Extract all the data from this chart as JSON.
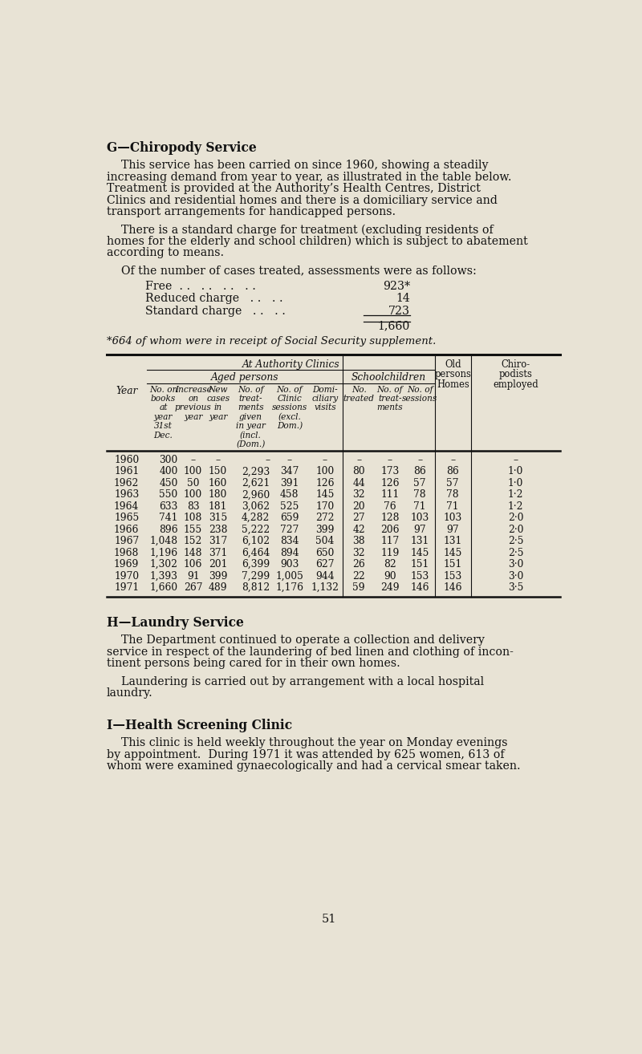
{
  "bg_color": "#e8e3d5",
  "text_color": "#111111",
  "title_g": "G—Chiropody Service",
  "lines1": [
    "    This service has been carried on since 1960, showing a steadily",
    "increasing demand from year to year, as illustrated in the table below.",
    "Treatment is provided at the Authority’s Health Centres, District",
    "Clinics and residential homes and there is a domiciliary service and",
    "transport arrangements for handicapped persons."
  ],
  "lines2": [
    "    There is a standard charge for treatment (excluding residents of",
    "homes for the elderly and school children) which is subject to abatement",
    "according to means."
  ],
  "lines3": "    Of the number of cases treated, assessments were as follows:",
  "charge_labels": [
    "Free  . .   . .   . .   . .",
    "Reduced charge   . .   . .",
    "Standard charge   . .   . ."
  ],
  "charge_values": [
    "923*",
    "14",
    "723"
  ],
  "total": "1,660",
  "footnote": "*664 of whom were in receipt of Social Security supplement.",
  "rows": [
    [
      "1960",
      "300",
      "–",
      "–",
      "–",
      "–",
      "–",
      "–",
      "–",
      "–",
      "–"
    ],
    [
      "1961",
      "400",
      "100",
      "150",
      "2,293",
      "347",
      "100",
      "80",
      "173",
      "86",
      "1·0"
    ],
    [
      "1962",
      "450",
      "50",
      "160",
      "2,621",
      "391",
      "126",
      "44",
      "126",
      "57",
      "1·0"
    ],
    [
      "1963",
      "550",
      "100",
      "180",
      "2,960",
      "458",
      "145",
      "32",
      "111",
      "78",
      "1·2"
    ],
    [
      "1964",
      "633",
      "83",
      "181",
      "3,062",
      "525",
      "170",
      "20",
      "76",
      "71",
      "1·2"
    ],
    [
      "1965",
      "741",
      "108",
      "315",
      "4,282",
      "659",
      "272",
      "27",
      "128",
      "103",
      "2·0"
    ],
    [
      "1966",
      "896",
      "155",
      "238",
      "5,222",
      "727",
      "399",
      "42",
      "206",
      "97",
      "2·0"
    ],
    [
      "1967",
      "1,048",
      "152",
      "317",
      "6,102",
      "834",
      "504",
      "38",
      "117",
      "131",
      "2·5"
    ],
    [
      "1968",
      "1,196",
      "148",
      "371",
      "6,464",
      "894",
      "650",
      "32",
      "119",
      "145",
      "2·5"
    ],
    [
      "1969",
      "1,302",
      "106",
      "201",
      "6,399",
      "903",
      "627",
      "26",
      "82",
      "151",
      "3·0"
    ],
    [
      "1970",
      "1,393",
      "91",
      "399",
      "7,299",
      "1,005",
      "944",
      "22",
      "90",
      "153",
      "3·0"
    ],
    [
      "1971",
      "1,660",
      "267",
      "489",
      "8,812",
      "1,176",
      "1,132",
      "59",
      "249",
      "146",
      "3·5"
    ]
  ],
  "title_h": "H—Laundry Service",
  "lines_h1": [
    "    The Department continued to operate a collection and delivery",
    "service in respect of the laundering of bed linen and clothing of incon-",
    "tinent persons being cared for in their own homes."
  ],
  "lines_h2": [
    "    Laundering is carried out by arrangement with a local hospital",
    "laundry."
  ],
  "title_i": "I—Health Screening Clinic",
  "lines_i": [
    "    This clinic is held weekly throughout the year on Monday evenings",
    "by appointment.  During 1971 it was attended by 625 women, 613 of",
    "whom were examined gynaecologically and had a cervical smear taken."
  ],
  "page_num": "51"
}
